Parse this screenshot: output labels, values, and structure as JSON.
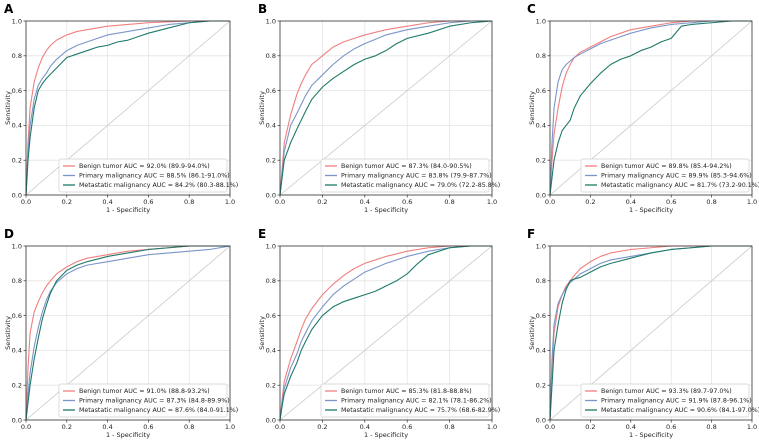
{
  "colors": {
    "benign": "#f07f7f",
    "primary": "#7b95c9",
    "metastatic": "#1e7a6a",
    "diagonal": "#c8c8c8",
    "grid": "#e4e4e4"
  },
  "chart_data": [
    {
      "type": "line",
      "panel": "A",
      "xlabel": "1 - Specificity",
      "ylabel": "Sensitivity",
      "xlim": [
        0,
        1
      ],
      "ylim": [
        0,
        1
      ],
      "xticks": [
        "0.0",
        "0.2",
        "0.4",
        "0.6",
        "0.8",
        "1.0"
      ],
      "yticks": [
        "0.0",
        "0.2",
        "0.4",
        "0.6",
        "0.8",
        "1.0"
      ],
      "grid": true,
      "legend_position": "bottom-right",
      "series": [
        {
          "name": "Benign tumor AUC = 92.0% (89.9-94.0%)",
          "color_key": "benign",
          "x": [
            0,
            0.01,
            0.02,
            0.04,
            0.06,
            0.08,
            0.1,
            0.12,
            0.15,
            0.2,
            0.25,
            0.3,
            0.4,
            0.5,
            0.6,
            0.7,
            0.8,
            0.9,
            1.0
          ],
          "y": [
            0,
            0.3,
            0.5,
            0.65,
            0.73,
            0.79,
            0.83,
            0.86,
            0.89,
            0.92,
            0.94,
            0.95,
            0.97,
            0.98,
            0.99,
            0.995,
            1,
            1,
            1
          ]
        },
        {
          "name": "Primary malignancy AUC = 88.5% (86.1-91.0%)",
          "color_key": "primary",
          "x": [
            0,
            0.01,
            0.02,
            0.04,
            0.06,
            0.08,
            0.1,
            0.12,
            0.15,
            0.2,
            0.25,
            0.3,
            0.35,
            0.4,
            0.5,
            0.6,
            0.7,
            0.8,
            0.9,
            1.0
          ],
          "y": [
            0,
            0.25,
            0.4,
            0.55,
            0.63,
            0.67,
            0.7,
            0.74,
            0.78,
            0.83,
            0.86,
            0.88,
            0.9,
            0.92,
            0.94,
            0.96,
            0.98,
            0.99,
            1,
            1
          ]
        },
        {
          "name": "Metastatic malignancy AUC = 84.2% (80.3-88.1%)",
          "color_key": "metastatic",
          "x": [
            0,
            0.01,
            0.02,
            0.04,
            0.06,
            0.08,
            0.1,
            0.15,
            0.2,
            0.25,
            0.3,
            0.35,
            0.4,
            0.45,
            0.5,
            0.55,
            0.6,
            0.7,
            0.8,
            0.9,
            1.0
          ],
          "y": [
            0,
            0.2,
            0.33,
            0.5,
            0.6,
            0.64,
            0.67,
            0.73,
            0.79,
            0.81,
            0.83,
            0.85,
            0.86,
            0.88,
            0.89,
            0.91,
            0.93,
            0.96,
            0.99,
            1,
            1
          ]
        }
      ]
    },
    {
      "type": "line",
      "panel": "B",
      "xlabel": "1 - Specificity",
      "ylabel": "Sensitivity",
      "xlim": [
        0,
        1
      ],
      "ylim": [
        0,
        1
      ],
      "xticks": [
        "0.0",
        "0.2",
        "0.4",
        "0.6",
        "0.8",
        "1.0"
      ],
      "yticks": [
        "0.0",
        "0.2",
        "0.4",
        "0.6",
        "0.8",
        "1.0"
      ],
      "grid": true,
      "legend_position": "bottom-right",
      "series": [
        {
          "name": "Benign tumor AUC = 87.3% (84.0-90.5%)",
          "color_key": "benign",
          "x": [
            0,
            0.01,
            0.02,
            0.05,
            0.08,
            0.1,
            0.12,
            0.15,
            0.2,
            0.25,
            0.3,
            0.35,
            0.4,
            0.5,
            0.6,
            0.7,
            0.8,
            0.9,
            1.0
          ],
          "y": [
            0,
            0.15,
            0.3,
            0.46,
            0.58,
            0.64,
            0.69,
            0.75,
            0.8,
            0.85,
            0.88,
            0.9,
            0.92,
            0.95,
            0.97,
            0.99,
            1,
            1,
            1
          ]
        },
        {
          "name": "Primary malignancy AUC = 83.8% (79.9-87.7%)",
          "color_key": "primary",
          "x": [
            0,
            0.01,
            0.02,
            0.05,
            0.08,
            0.1,
            0.12,
            0.15,
            0.2,
            0.25,
            0.3,
            0.35,
            0.4,
            0.5,
            0.6,
            0.7,
            0.8,
            0.9,
            1.0
          ],
          "y": [
            0,
            0.12,
            0.25,
            0.4,
            0.47,
            0.52,
            0.57,
            0.63,
            0.69,
            0.75,
            0.8,
            0.84,
            0.87,
            0.92,
            0.95,
            0.97,
            0.99,
            1,
            1
          ]
        },
        {
          "name": "Metastatic malignancy AUC = 79.0% (72.2-85.8%)",
          "color_key": "metastatic",
          "x": [
            0,
            0.01,
            0.02,
            0.05,
            0.08,
            0.1,
            0.12,
            0.15,
            0.2,
            0.25,
            0.3,
            0.35,
            0.4,
            0.45,
            0.5,
            0.55,
            0.6,
            0.7,
            0.8,
            0.9,
            1.0
          ],
          "y": [
            0,
            0.1,
            0.2,
            0.3,
            0.38,
            0.43,
            0.48,
            0.55,
            0.62,
            0.67,
            0.71,
            0.75,
            0.78,
            0.8,
            0.83,
            0.87,
            0.9,
            0.93,
            0.97,
            0.99,
            1
          ]
        }
      ]
    },
    {
      "type": "line",
      "panel": "C",
      "xlabel": "1 - Specificity",
      "ylabel": "Sensitivity",
      "xlim": [
        0,
        1
      ],
      "ylim": [
        0,
        1
      ],
      "xticks": [
        "0.0",
        "0.2",
        "0.4",
        "0.6",
        "0.8",
        "1.0"
      ],
      "yticks": [
        "0.0",
        "0.2",
        "0.4",
        "0.6",
        "0.8",
        "1.0"
      ],
      "grid": true,
      "legend_position": "bottom-right",
      "series": [
        {
          "name": "Benign tumor AUC = 89.8% (85.4-94.2%)",
          "color_key": "benign",
          "x": [
            0,
            0.01,
            0.02,
            0.04,
            0.06,
            0.08,
            0.1,
            0.12,
            0.15,
            0.2,
            0.25,
            0.3,
            0.35,
            0.4,
            0.5,
            0.6,
            0.7,
            0.8,
            0.9,
            1.0
          ],
          "y": [
            0,
            0.2,
            0.35,
            0.5,
            0.62,
            0.7,
            0.75,
            0.79,
            0.82,
            0.85,
            0.88,
            0.91,
            0.93,
            0.95,
            0.97,
            0.99,
            1,
            1,
            1,
            1
          ]
        },
        {
          "name": "Primary malignancy AUC = 89.9% (85.3-94.6%)",
          "color_key": "primary",
          "x": [
            0,
            0.01,
            0.02,
            0.04,
            0.06,
            0.08,
            0.1,
            0.12,
            0.15,
            0.2,
            0.25,
            0.3,
            0.35,
            0.4,
            0.5,
            0.6,
            0.7,
            0.8,
            0.9,
            1.0
          ],
          "y": [
            0,
            0.3,
            0.5,
            0.65,
            0.72,
            0.75,
            0.77,
            0.79,
            0.81,
            0.84,
            0.87,
            0.89,
            0.91,
            0.93,
            0.96,
            0.98,
            0.99,
            1,
            1,
            1
          ]
        },
        {
          "name": "Metastatic malignancy AUC = 81.7% (73.2-90.1%)",
          "color_key": "metastatic",
          "x": [
            0,
            0.01,
            0.02,
            0.04,
            0.06,
            0.08,
            0.1,
            0.12,
            0.15,
            0.2,
            0.25,
            0.3,
            0.35,
            0.4,
            0.45,
            0.5,
            0.55,
            0.6,
            0.65,
            0.7,
            0.8,
            0.9,
            1.0
          ],
          "y": [
            0,
            0.1,
            0.2,
            0.3,
            0.37,
            0.4,
            0.43,
            0.5,
            0.57,
            0.64,
            0.7,
            0.75,
            0.78,
            0.8,
            0.83,
            0.85,
            0.88,
            0.9,
            0.97,
            0.98,
            0.99,
            1,
            1
          ]
        }
      ]
    },
    {
      "type": "line",
      "panel": "D",
      "xlabel": "1 - Specificity",
      "ylabel": "Sensitivity",
      "xlim": [
        0,
        1
      ],
      "ylim": [
        0,
        1
      ],
      "xticks": [
        "0.0",
        "0.2",
        "0.4",
        "0.6",
        "0.8",
        "1.0"
      ],
      "yticks": [
        "0.0",
        "0.2",
        "0.4",
        "0.6",
        "0.8",
        "1.0"
      ],
      "grid": true,
      "legend_position": "bottom-right",
      "series": [
        {
          "name": "Benign tumor AUC = 91.0% (88.8-93.2%)",
          "color_key": "benign",
          "x": [
            0,
            0.01,
            0.02,
            0.04,
            0.06,
            0.08,
            0.1,
            0.12,
            0.15,
            0.2,
            0.25,
            0.3,
            0.4,
            0.5,
            0.6,
            0.7,
            0.8,
            0.9,
            1.0
          ],
          "y": [
            0,
            0.3,
            0.5,
            0.62,
            0.68,
            0.73,
            0.77,
            0.8,
            0.84,
            0.88,
            0.91,
            0.93,
            0.95,
            0.97,
            0.98,
            0.99,
            1,
            1,
            1
          ]
        },
        {
          "name": "Primary malignancy AUC = 87.3% (84.8-89.9%)",
          "color_key": "primary",
          "x": [
            0,
            0.01,
            0.02,
            0.04,
            0.06,
            0.08,
            0.1,
            0.12,
            0.15,
            0.2,
            0.25,
            0.3,
            0.4,
            0.5,
            0.6,
            0.7,
            0.8,
            0.9,
            1.0
          ],
          "y": [
            0,
            0.15,
            0.27,
            0.42,
            0.53,
            0.62,
            0.69,
            0.74,
            0.79,
            0.84,
            0.87,
            0.89,
            0.91,
            0.93,
            0.95,
            0.96,
            0.97,
            0.98,
            1
          ]
        },
        {
          "name": "Metastatic malignancy AUC = 87.6% (84.0-91.1%)",
          "color_key": "metastatic",
          "x": [
            0,
            0.01,
            0.02,
            0.04,
            0.06,
            0.08,
            0.1,
            0.12,
            0.15,
            0.2,
            0.25,
            0.3,
            0.4,
            0.5,
            0.6,
            0.7,
            0.8,
            0.9,
            1.0
          ],
          "y": [
            0,
            0.1,
            0.2,
            0.35,
            0.47,
            0.58,
            0.66,
            0.73,
            0.8,
            0.86,
            0.89,
            0.91,
            0.94,
            0.96,
            0.98,
            0.99,
            1,
            1,
            1
          ]
        }
      ]
    },
    {
      "type": "line",
      "panel": "E",
      "xlabel": "1 - Specificity",
      "ylabel": "Sensitivity",
      "xlim": [
        0,
        1
      ],
      "ylim": [
        0,
        1
      ],
      "xticks": [
        "0.0",
        "0.2",
        "0.4",
        "0.6",
        "0.8",
        "1.0"
      ],
      "yticks": [
        "0.0",
        "0.2",
        "0.4",
        "0.6",
        "0.8",
        "1.0"
      ],
      "grid": true,
      "legend_position": "bottom-right",
      "series": [
        {
          "name": "Benign tumor AUC = 85.3% (81.8-88.8%)",
          "color_key": "benign",
          "x": [
            0,
            0.01,
            0.02,
            0.05,
            0.08,
            0.1,
            0.12,
            0.15,
            0.2,
            0.25,
            0.3,
            0.35,
            0.4,
            0.5,
            0.6,
            0.7,
            0.8,
            0.9,
            1.0
          ],
          "y": [
            0,
            0.12,
            0.22,
            0.35,
            0.45,
            0.52,
            0.58,
            0.64,
            0.72,
            0.78,
            0.83,
            0.87,
            0.9,
            0.94,
            0.97,
            0.99,
            1,
            1,
            1
          ]
        },
        {
          "name": "Primary malignancy AUC = 82.1% (78.1-86.2%)",
          "color_key": "primary",
          "x": [
            0,
            0.01,
            0.02,
            0.05,
            0.08,
            0.1,
            0.12,
            0.15,
            0.2,
            0.25,
            0.3,
            0.35,
            0.4,
            0.5,
            0.6,
            0.7,
            0.8,
            0.9,
            1.0
          ],
          "y": [
            0,
            0.1,
            0.18,
            0.3,
            0.38,
            0.45,
            0.5,
            0.57,
            0.65,
            0.72,
            0.77,
            0.81,
            0.85,
            0.9,
            0.94,
            0.97,
            0.99,
            1,
            1
          ]
        },
        {
          "name": "Metastatic malignancy AUC = 75.7% (68.6-82.9%)",
          "color_key": "metastatic",
          "x": [
            0,
            0.01,
            0.02,
            0.05,
            0.08,
            0.1,
            0.12,
            0.15,
            0.2,
            0.25,
            0.3,
            0.35,
            0.4,
            0.45,
            0.5,
            0.55,
            0.6,
            0.65,
            0.7,
            0.8,
            0.9,
            1.0
          ],
          "y": [
            0,
            0.08,
            0.15,
            0.25,
            0.33,
            0.4,
            0.45,
            0.52,
            0.6,
            0.65,
            0.68,
            0.7,
            0.72,
            0.74,
            0.77,
            0.8,
            0.84,
            0.9,
            0.95,
            0.99,
            1,
            1
          ]
        }
      ]
    },
    {
      "type": "line",
      "panel": "F",
      "xlabel": "1 - Specificity",
      "ylabel": "Sensitivity",
      "xlim": [
        0,
        1
      ],
      "ylim": [
        0,
        1
      ],
      "xticks": [
        "0.0",
        "0.2",
        "0.4",
        "0.6",
        "0.8",
        "1.0"
      ],
      "yticks": [
        "0.0",
        "0.2",
        "0.4",
        "0.6",
        "0.8",
        "1.0"
      ],
      "grid": true,
      "legend_position": "bottom-right",
      "series": [
        {
          "name": "Benign tumor AUC = 93.3% (89.7-97.0%)",
          "color_key": "benign",
          "x": [
            0,
            0.01,
            0.02,
            0.04,
            0.06,
            0.08,
            0.1,
            0.12,
            0.15,
            0.2,
            0.25,
            0.3,
            0.4,
            0.5,
            0.6,
            0.7,
            0.8,
            0.9,
            1.0
          ],
          "y": [
            0,
            0.3,
            0.5,
            0.65,
            0.72,
            0.77,
            0.8,
            0.83,
            0.87,
            0.91,
            0.94,
            0.96,
            0.98,
            0.99,
            1,
            1,
            1,
            1,
            1
          ]
        },
        {
          "name": "Primary malignancy AUC = 91.9% (87.8-96.1%)",
          "color_key": "primary",
          "x": [
            0,
            0.01,
            0.02,
            0.04,
            0.06,
            0.08,
            0.1,
            0.12,
            0.15,
            0.2,
            0.25,
            0.3,
            0.4,
            0.5,
            0.6,
            0.7,
            0.8,
            0.9,
            1.0
          ],
          "y": [
            0,
            0.35,
            0.55,
            0.67,
            0.72,
            0.76,
            0.79,
            0.81,
            0.84,
            0.87,
            0.9,
            0.92,
            0.94,
            0.96,
            0.98,
            0.99,
            1,
            1,
            1
          ]
        },
        {
          "name": "Metastatic malignancy AUC = 90.6% (84.1-97.0%)",
          "color_key": "metastatic",
          "x": [
            0,
            0.01,
            0.02,
            0.04,
            0.06,
            0.08,
            0.1,
            0.12,
            0.15,
            0.2,
            0.25,
            0.3,
            0.4,
            0.5,
            0.6,
            0.7,
            0.8,
            0.9,
            1.0
          ],
          "y": [
            0,
            0.2,
            0.4,
            0.55,
            0.67,
            0.75,
            0.8,
            0.81,
            0.82,
            0.85,
            0.88,
            0.9,
            0.93,
            0.96,
            0.98,
            0.99,
            1,
            1,
            1
          ]
        }
      ]
    }
  ]
}
